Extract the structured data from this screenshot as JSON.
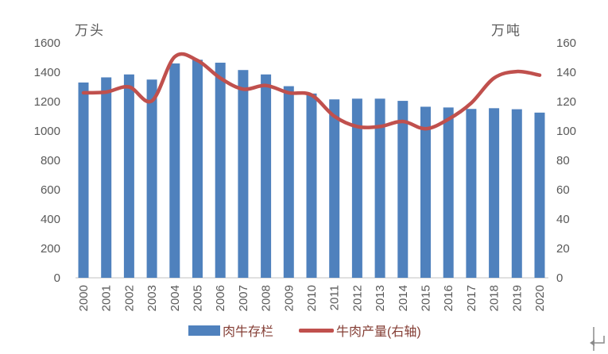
{
  "chart_data": {
    "type": "combo",
    "categories": [
      "2000",
      "2001",
      "2002",
      "2003",
      "2004",
      "2005",
      "2006",
      "2007",
      "2008",
      "2009",
      "2010",
      "2011",
      "2012",
      "2013",
      "2014",
      "2015",
      "2016",
      "2017",
      "2018",
      "2019",
      "2020"
    ],
    "series": [
      {
        "name": "肉牛存栏",
        "type": "bar",
        "axis": "left",
        "values": [
          1330,
          1365,
          1385,
          1350,
          1460,
          1485,
          1465,
          1415,
          1385,
          1305,
          1255,
          1215,
          1220,
          1220,
          1205,
          1165,
          1160,
          1150,
          1155,
          1148,
          1125
        ]
      },
      {
        "name": "牛肉产量(右轴)",
        "type": "line",
        "axis": "right",
        "values": [
          126,
          126.5,
          130,
          120.5,
          150.5,
          148,
          136,
          128.5,
          131,
          126,
          124.5,
          110,
          103,
          103,
          106.5,
          101.5,
          108,
          119,
          136,
          140.5,
          138
        ]
      }
    ],
    "left_axis": {
      "title": "万头",
      "min": 0,
      "max": 1600,
      "step": 200,
      "ticks": [
        0,
        200,
        400,
        600,
        800,
        1000,
        1200,
        1400,
        1600
      ]
    },
    "right_axis": {
      "title": "万吨",
      "min": 0,
      "max": 160,
      "step": 20,
      "ticks": [
        0,
        20,
        40,
        60,
        80,
        100,
        120,
        140,
        160
      ]
    },
    "grid": false,
    "legend_position": "bottom"
  },
  "colors": {
    "bar": "#4f81bd",
    "line": "#c0504d",
    "axis_text": "#595959",
    "legend_text": "#843e35",
    "baseline": "#d6d6d6",
    "background": "#ffffff",
    "return_mark": "#8a8a8a"
  },
  "misc": {
    "trailing_mark": "↵"
  }
}
